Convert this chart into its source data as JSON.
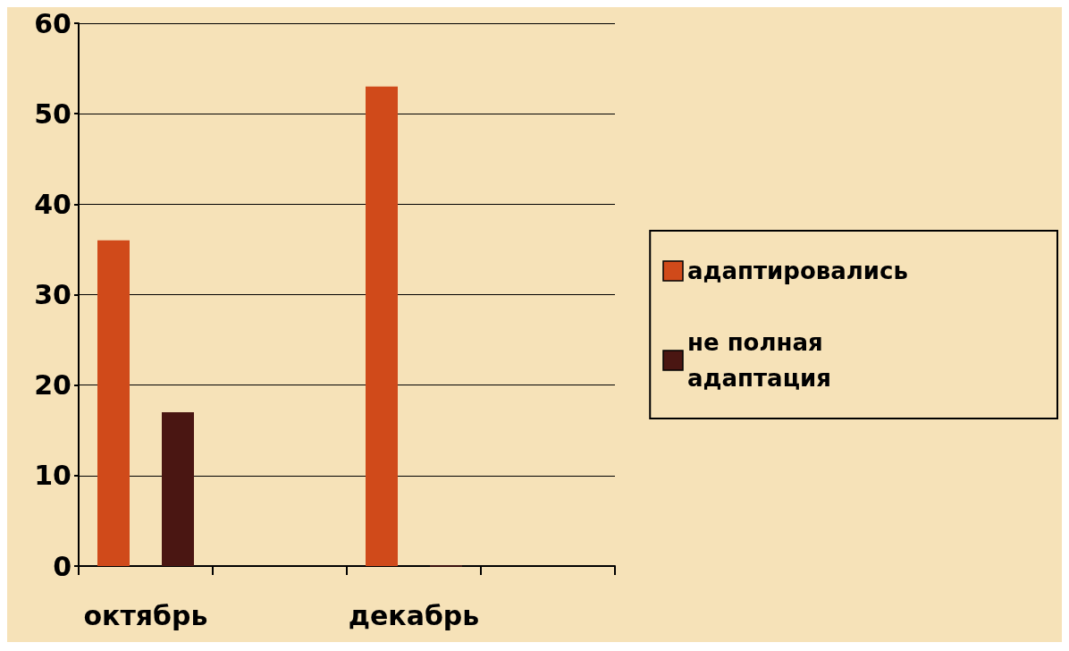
{
  "chart_data": {
    "type": "bar",
    "categories": [
      "октябрь",
      null,
      "декабрь",
      null
    ],
    "series": [
      {
        "name": "адаптировались",
        "color": "#d04a1a",
        "values": [
          36,
          null,
          53,
          null
        ]
      },
      {
        "name": "не полная адаптация",
        "color": "#4a1612",
        "values": [
          17,
          null,
          0,
          null
        ]
      }
    ],
    "ylim": [
      0,
      60
    ],
    "yticks": [
      0,
      10,
      20,
      30,
      40,
      50,
      60
    ],
    "grid": "y",
    "legend": "right"
  }
}
